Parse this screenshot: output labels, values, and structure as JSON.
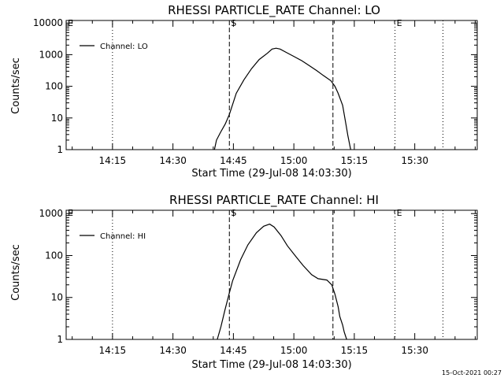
{
  "footer": "15-Oct-2021 00:27",
  "chart_data": [
    {
      "type": "line",
      "title": "RHESSI  PARTICLE_RATE Channel: LO",
      "xlabel": "Start Time (29-Jul-08 14:03:30)",
      "ylabel": "Counts/sec",
      "y_scale": "log",
      "ylim": [
        1,
        12000
      ],
      "xlim": [
        0,
        102
      ],
      "x_units": "minutes after 14:03:30",
      "x_ticks": [
        {
          "x": 11.5,
          "label": "14:15"
        },
        {
          "x": 26.5,
          "label": "14:30"
        },
        {
          "x": 41.5,
          "label": "14:45"
        },
        {
          "x": 56.5,
          "label": "15:00"
        },
        {
          "x": 71.5,
          "label": "15:15"
        },
        {
          "x": 86.5,
          "label": "15:30"
        }
      ],
      "y_ticks": [
        {
          "y": 1,
          "label": "1"
        },
        {
          "y": 10,
          "label": "10"
        },
        {
          "y": 100,
          "label": "100"
        },
        {
          "y": 1000,
          "label": "1000"
        },
        {
          "y": 10000,
          "label": "10000"
        }
      ],
      "legend": {
        "position": "top-left",
        "entries": [
          "Channel: LO"
        ]
      },
      "markers": [
        {
          "x": 0,
          "style": "dotted",
          "label": "E"
        },
        {
          "x": 11.5,
          "style": "dotted",
          "label": ""
        },
        {
          "x": 40.5,
          "style": "dashed",
          "label": "S"
        },
        {
          "x": 66.2,
          "style": "dashed",
          "label": ""
        },
        {
          "x": 81.6,
          "style": "dotted",
          "label": "E"
        },
        {
          "x": 93.5,
          "style": "dotted",
          "label": ""
        }
      ],
      "series": [
        {
          "name": "Channel: LO",
          "x": [
            36.8,
            37.3,
            38.3,
            39.5,
            40.5,
            42.2,
            44.1,
            46.0,
            47.9,
            49.9,
            51.1,
            52.1,
            53.1,
            54.6,
            56.5,
            58.4,
            60.0,
            62.2,
            63.8,
            65.7,
            66.7,
            67.5,
            68.6,
            69.4,
            69.9,
            70.6
          ],
          "y": [
            1.0,
            2.0,
            3.5,
            6.5,
            13,
            60,
            160,
            360,
            700,
            1100,
            1500,
            1600,
            1500,
            1180,
            880,
            650,
            480,
            310,
            220,
            150,
            100,
            60,
            25,
            6.5,
            2.8,
            1.0
          ]
        }
      ]
    },
    {
      "type": "line",
      "title": "RHESSI  PARTICLE_RATE Channel: HI",
      "xlabel": "Start Time (29-Jul-08 14:03:30)",
      "ylabel": "Counts/sec",
      "y_scale": "log",
      "ylim": [
        1,
        1200
      ],
      "xlim": [
        0,
        102
      ],
      "x_units": "minutes after 14:03:30",
      "x_ticks": [
        {
          "x": 11.5,
          "label": "14:15"
        },
        {
          "x": 26.5,
          "label": "14:30"
        },
        {
          "x": 41.5,
          "label": "14:45"
        },
        {
          "x": 56.5,
          "label": "15:00"
        },
        {
          "x": 71.5,
          "label": "15:15"
        },
        {
          "x": 86.5,
          "label": "15:30"
        }
      ],
      "y_ticks": [
        {
          "y": 1,
          "label": "1"
        },
        {
          "y": 10,
          "label": "10"
        },
        {
          "y": 100,
          "label": "100"
        },
        {
          "y": 1000,
          "label": "1000"
        }
      ],
      "legend": {
        "position": "top-left",
        "entries": [
          "Channel: HI"
        ]
      },
      "markers": [
        {
          "x": 0,
          "style": "dotted",
          "label": "E"
        },
        {
          "x": 11.5,
          "style": "dotted",
          "label": ""
        },
        {
          "x": 40.5,
          "style": "dashed",
          "label": "S"
        },
        {
          "x": 66.2,
          "style": "dashed",
          "label": ""
        },
        {
          "x": 81.6,
          "style": "dotted",
          "label": "E"
        },
        {
          "x": 93.5,
          "style": "dotted",
          "label": ""
        }
      ],
      "series": [
        {
          "name": "Channel: HI",
          "x": [
            37.5,
            38.4,
            39.4,
            40.5,
            41.3,
            43.3,
            45.1,
            47.2,
            49.0,
            50.5,
            51.6,
            53.3,
            54.9,
            56.8,
            58.8,
            60.9,
            62.5,
            64.7,
            65.9,
            66.7,
            67.5,
            67.9,
            68.6,
            69.0,
            69.6
          ],
          "y": [
            1.0,
            2.0,
            5.0,
            13,
            25,
            80,
            180,
            350,
            500,
            560,
            480,
            300,
            170,
            100,
            58,
            35,
            28,
            26,
            20,
            12,
            6,
            3.5,
            2.2,
            1.5,
            1.0
          ]
        }
      ]
    }
  ]
}
